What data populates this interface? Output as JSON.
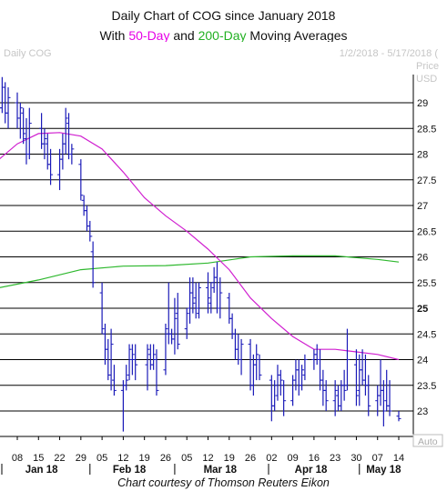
{
  "title_line1": "Daily Chart of COG since January 2018",
  "title_line2": {
    "prefix": "With ",
    "fifty": "50-Day",
    "middle": " and ",
    "two_hundred": "200-Day",
    "suffix": " Moving Averages"
  },
  "credit": "Chart courtesy of Thomson Reuters Eikon",
  "chart_data": {
    "type": "ohlc",
    "instrument_label": "Daily COG",
    "date_range_label": "1/2/2018 - 5/17/2018 (",
    "axis_unit_top": "Price",
    "axis_unit_bottom": "USD",
    "auto_label": "Auto",
    "ylim": [
      22.6,
      29.55
    ],
    "y_ticks": [
      {
        "value": 29,
        "label": "29"
      },
      {
        "value": 28.5,
        "label": "28.5"
      },
      {
        "value": 28,
        "label": "28"
      },
      {
        "value": 27.5,
        "label": "27.5"
      },
      {
        "value": 27,
        "label": "27"
      },
      {
        "value": 26.5,
        "label": "26.5"
      },
      {
        "value": 26,
        "label": "26"
      },
      {
        "value": 25.5,
        "label": "25.5"
      },
      {
        "value": 25,
        "label": "25"
      },
      {
        "value": 24.5,
        "label": "24.5"
      },
      {
        "value": 24,
        "label": "24"
      },
      {
        "value": 23.5,
        "label": "23.5"
      },
      {
        "value": 23,
        "label": "23"
      }
    ],
    "highlight_tick": 25,
    "x_day_labels": [
      "08",
      "15",
      "22",
      "29",
      "05",
      "12",
      "19",
      "26",
      "05",
      "12",
      "19",
      "26",
      "02",
      "09",
      "16",
      "23",
      "30",
      "07",
      "14"
    ],
    "x_month_labels": [
      "Jan 18",
      "Feb 18",
      "Mar 18",
      "Apr 18",
      "May 18"
    ],
    "colors": {
      "bars": "#1a1ab8",
      "sma50": "#d020d0",
      "sma200": "#2eb82e",
      "grid": "#000000"
    },
    "ohlc": [
      {
        "date": "2018-01-02",
        "o": 28.3,
        "h": 29.1,
        "l": 28.1,
        "c": 28.9
      },
      {
        "date": "2018-01-03",
        "o": 28.9,
        "h": 29.5,
        "l": 28.8,
        "c": 29.3
      },
      {
        "date": "2018-01-04",
        "o": 29.3,
        "h": 29.4,
        "l": 28.6,
        "c": 28.8
      },
      {
        "date": "2018-01-05",
        "o": 28.8,
        "h": 29.3,
        "l": 28.5,
        "c": 29.1
      },
      {
        "date": "2018-01-08",
        "o": 29.0,
        "h": 29.2,
        "l": 28.5,
        "c": 28.7
      },
      {
        "date": "2018-01-09",
        "o": 28.7,
        "h": 29.0,
        "l": 28.3,
        "c": 28.9
      },
      {
        "date": "2018-01-10",
        "o": 28.8,
        "h": 28.9,
        "l": 28.2,
        "c": 28.4
      },
      {
        "date": "2018-01-11",
        "o": 28.3,
        "h": 28.7,
        "l": 27.8,
        "c": 28.0
      },
      {
        "date": "2018-01-12",
        "o": 28.0,
        "h": 28.9,
        "l": 27.9,
        "c": 28.6
      },
      {
        "date": "2018-01-16",
        "o": 28.5,
        "h": 28.8,
        "l": 28.1,
        "c": 28.2
      },
      {
        "date": "2018-01-17",
        "o": 28.2,
        "h": 28.5,
        "l": 27.9,
        "c": 28.3
      },
      {
        "date": "2018-01-18",
        "o": 28.2,
        "h": 28.4,
        "l": 27.7,
        "c": 27.8
      },
      {
        "date": "2018-01-19",
        "o": 27.8,
        "h": 28.1,
        "l": 27.4,
        "c": 27.6
      },
      {
        "date": "2018-01-22",
        "o": 27.6,
        "h": 28.1,
        "l": 27.3,
        "c": 27.9
      },
      {
        "date": "2018-01-23",
        "o": 27.9,
        "h": 28.4,
        "l": 27.7,
        "c": 28.2
      },
      {
        "date": "2018-01-24",
        "o": 28.2,
        "h": 28.9,
        "l": 28.0,
        "c": 28.7
      },
      {
        "date": "2018-01-25",
        "o": 28.6,
        "h": 28.8,
        "l": 27.9,
        "c": 28.0
      },
      {
        "date": "2018-01-26",
        "o": 28.0,
        "h": 28.2,
        "l": 27.8,
        "c": 28.1
      },
      {
        "date": "2018-01-29",
        "o": 27.8,
        "h": 27.9,
        "l": 27.1,
        "c": 27.2
      },
      {
        "date": "2018-01-30",
        "o": 27.1,
        "h": 27.2,
        "l": 26.8,
        "c": 26.9
      },
      {
        "date": "2018-01-31",
        "o": 26.9,
        "h": 27.0,
        "l": 26.5,
        "c": 26.6
      },
      {
        "date": "2018-02-01",
        "o": 26.6,
        "h": 26.7,
        "l": 26.3,
        "c": 26.4
      },
      {
        "date": "2018-02-02",
        "o": 26.1,
        "h": 26.3,
        "l": 25.4,
        "c": 25.5
      },
      {
        "date": "2018-02-05",
        "o": 25.3,
        "h": 25.5,
        "l": 24.5,
        "c": 24.6
      },
      {
        "date": "2018-02-06",
        "o": 24.5,
        "h": 24.7,
        "l": 23.9,
        "c": 24.2
      },
      {
        "date": "2018-02-07",
        "o": 24.2,
        "h": 24.4,
        "l": 23.6,
        "c": 23.7
      },
      {
        "date": "2018-02-08",
        "o": 23.7,
        "h": 24.6,
        "l": 23.4,
        "c": 24.3
      },
      {
        "date": "2018-02-09",
        "o": 23.6,
        "h": 23.9,
        "l": 23.3,
        "c": 23.4
      },
      {
        "date": "2018-02-12",
        "o": 23.4,
        "h": 23.6,
        "l": 22.6,
        "c": 23.5
      },
      {
        "date": "2018-02-13",
        "o": 23.5,
        "h": 23.9,
        "l": 23.4,
        "c": 23.6
      },
      {
        "date": "2018-02-14",
        "o": 23.7,
        "h": 24.3,
        "l": 23.6,
        "c": 24.2
      },
      {
        "date": "2018-02-15",
        "o": 24.0,
        "h": 24.3,
        "l": 23.7,
        "c": 24.1
      },
      {
        "date": "2018-02-16",
        "o": 24.0,
        "h": 24.3,
        "l": 23.6,
        "c": 23.9
      },
      {
        "date": "2018-02-20",
        "o": 23.9,
        "h": 24.3,
        "l": 23.4,
        "c": 24.2
      },
      {
        "date": "2018-02-21",
        "o": 24.1,
        "h": 24.3,
        "l": 23.8,
        "c": 23.9
      },
      {
        "date": "2018-02-22",
        "o": 23.9,
        "h": 24.3,
        "l": 23.8,
        "c": 24.1
      },
      {
        "date": "2018-02-23",
        "o": 24.0,
        "h": 24.2,
        "l": 23.3,
        "c": 23.4
      },
      {
        "date": "2018-02-26",
        "o": 23.8,
        "h": 24.7,
        "l": 23.7,
        "c": 24.6
      },
      {
        "date": "2018-02-27",
        "o": 24.5,
        "h": 25.5,
        "l": 24.3,
        "c": 24.5
      },
      {
        "date": "2018-02-28",
        "o": 24.5,
        "h": 24.6,
        "l": 24.3,
        "c": 24.4
      },
      {
        "date": "2018-03-01",
        "o": 24.4,
        "h": 25.2,
        "l": 24.1,
        "c": 24.8
      },
      {
        "date": "2018-03-02",
        "o": 24.9,
        "h": 25.3,
        "l": 24.2,
        "c": 24.3
      },
      {
        "date": "2018-03-05",
        "o": 24.6,
        "h": 25.0,
        "l": 24.4,
        "c": 24.9
      },
      {
        "date": "2018-03-06",
        "o": 25.0,
        "h": 25.6,
        "l": 24.7,
        "c": 25.3
      },
      {
        "date": "2018-03-07",
        "o": 25.3,
        "h": 25.6,
        "l": 24.9,
        "c": 25.1
      },
      {
        "date": "2018-03-08",
        "o": 25.2,
        "h": 25.5,
        "l": 24.8,
        "c": 25.0
      },
      {
        "date": "2018-03-09",
        "o": 24.9,
        "h": 25.5,
        "l": 24.8,
        "c": 25.4
      },
      {
        "date": "2018-03-12",
        "o": 25.4,
        "h": 25.7,
        "l": 24.9,
        "c": 25.2
      },
      {
        "date": "2018-03-13",
        "o": 25.1,
        "h": 25.5,
        "l": 24.9,
        "c": 25.5
      },
      {
        "date": "2018-03-14",
        "o": 25.4,
        "h": 25.8,
        "l": 25.3,
        "c": 25.6
      },
      {
        "date": "2018-03-15",
        "o": 25.6,
        "h": 25.9,
        "l": 24.9,
        "c": 25.0
      },
      {
        "date": "2018-03-16",
        "o": 25.0,
        "h": 25.6,
        "l": 24.8,
        "c": 25.3
      },
      {
        "date": "2018-03-19",
        "o": 25.2,
        "h": 25.3,
        "l": 24.7,
        "c": 24.8
      },
      {
        "date": "2018-03-20",
        "o": 24.8,
        "h": 24.9,
        "l": 24.4,
        "c": 24.5
      },
      {
        "date": "2018-03-21",
        "o": 24.5,
        "h": 24.6,
        "l": 24.0,
        "c": 24.2
      },
      {
        "date": "2018-03-22",
        "o": 24.2,
        "h": 24.5,
        "l": 23.9,
        "c": 24.0
      },
      {
        "date": "2018-03-23",
        "o": 24.0,
        "h": 24.4,
        "l": 23.7,
        "c": 24.3
      },
      {
        "date": "2018-03-26",
        "o": 24.3,
        "h": 24.4,
        "l": 23.4,
        "c": 23.5
      },
      {
        "date": "2018-03-27",
        "o": 23.5,
        "h": 24.1,
        "l": 23.3,
        "c": 23.9
      },
      {
        "date": "2018-03-28",
        "o": 23.9,
        "h": 24.3,
        "l": 23.6,
        "c": 24.1
      },
      {
        "date": "2018-03-29",
        "o": 24.0,
        "h": 24.1,
        "l": 23.6,
        "c": 23.7
      },
      {
        "date": "2018-04-02",
        "o": 23.6,
        "h": 23.7,
        "l": 22.8,
        "c": 23.1
      },
      {
        "date": "2018-04-03",
        "o": 23.1,
        "h": 23.6,
        "l": 23.0,
        "c": 23.5
      },
      {
        "date": "2018-04-04",
        "o": 23.3,
        "h": 23.9,
        "l": 23.2,
        "c": 23.7
      },
      {
        "date": "2018-04-05",
        "o": 23.7,
        "h": 23.8,
        "l": 23.3,
        "c": 23.6
      },
      {
        "date": "2018-04-06",
        "o": 23.5,
        "h": 23.6,
        "l": 22.9,
        "c": 23.2
      },
      {
        "date": "2018-04-09",
        "o": 23.2,
        "h": 23.7,
        "l": 23.1,
        "c": 23.6
      },
      {
        "date": "2018-04-10",
        "o": 23.6,
        "h": 24.0,
        "l": 23.4,
        "c": 23.8
      },
      {
        "date": "2018-04-11",
        "o": 23.8,
        "h": 24.0,
        "l": 23.3,
        "c": 23.5
      },
      {
        "date": "2018-04-12",
        "o": 23.5,
        "h": 23.9,
        "l": 23.4,
        "c": 23.8
      },
      {
        "date": "2018-04-13",
        "o": 23.7,
        "h": 24.1,
        "l": 23.6,
        "c": 24.0
      },
      {
        "date": "2018-04-16",
        "o": 24.0,
        "h": 24.2,
        "l": 23.8,
        "c": 24.1
      },
      {
        "date": "2018-04-17",
        "o": 24.1,
        "h": 24.3,
        "l": 23.9,
        "c": 24.0
      },
      {
        "date": "2018-04-18",
        "o": 24.0,
        "h": 24.2,
        "l": 23.4,
        "c": 23.6
      },
      {
        "date": "2018-04-19",
        "o": 23.6,
        "h": 23.8,
        "l": 23.1,
        "c": 23.4
      },
      {
        "date": "2018-04-20",
        "o": 23.4,
        "h": 23.6,
        "l": 23.0,
        "c": 23.2
      },
      {
        "date": "2018-04-23",
        "o": 23.2,
        "h": 23.6,
        "l": 22.9,
        "c": 23.4
      },
      {
        "date": "2018-04-24",
        "o": 23.3,
        "h": 23.5,
        "l": 23.0,
        "c": 23.1
      },
      {
        "date": "2018-04-25",
        "o": 23.1,
        "h": 23.6,
        "l": 23.0,
        "c": 23.5
      },
      {
        "date": "2018-04-26",
        "o": 23.5,
        "h": 23.8,
        "l": 23.2,
        "c": 23.4
      },
      {
        "date": "2018-04-27",
        "o": 23.5,
        "h": 24.6,
        "l": 23.4,
        "c": 24.0
      },
      {
        "date": "2018-04-30",
        "o": 23.9,
        "h": 24.2,
        "l": 23.1,
        "c": 23.3
      },
      {
        "date": "2018-05-01",
        "o": 23.4,
        "h": 24.1,
        "l": 23.1,
        "c": 23.8
      },
      {
        "date": "2018-05-02",
        "o": 23.8,
        "h": 24.2,
        "l": 23.5,
        "c": 23.6
      },
      {
        "date": "2018-05-03",
        "o": 23.6,
        "h": 24.1,
        "l": 23.3,
        "c": 23.5
      },
      {
        "date": "2018-05-04",
        "o": 23.5,
        "h": 23.7,
        "l": 22.9,
        "c": 23.1
      },
      {
        "date": "2018-05-07",
        "o": 23.2,
        "h": 23.5,
        "l": 22.9,
        "c": 23.3
      },
      {
        "date": "2018-05-08",
        "o": 23.3,
        "h": 24.0,
        "l": 23.1,
        "c": 23.4
      },
      {
        "date": "2018-05-09",
        "o": 23.4,
        "h": 23.6,
        "l": 22.7,
        "c": 23.0
      },
      {
        "date": "2018-05-10",
        "o": 23.2,
        "h": 23.8,
        "l": 23.0,
        "c": 23.1
      },
      {
        "date": "2018-05-11",
        "o": 23.1,
        "h": 23.6,
        "l": 22.9,
        "c": 23.0
      },
      {
        "date": "2018-05-14",
        "o": 22.9,
        "h": 23.0,
        "l": 22.8,
        "c": 22.85
      }
    ],
    "sma50": [
      {
        "date": "2018-01-02",
        "v": 27.9
      },
      {
        "date": "2018-01-08",
        "v": 28.2
      },
      {
        "date": "2018-01-15",
        "v": 28.4
      },
      {
        "date": "2018-01-22",
        "v": 28.42
      },
      {
        "date": "2018-01-29",
        "v": 28.35
      },
      {
        "date": "2018-02-05",
        "v": 28.1
      },
      {
        "date": "2018-02-12",
        "v": 27.65
      },
      {
        "date": "2018-02-19",
        "v": 27.15
      },
      {
        "date": "2018-02-26",
        "v": 26.8
      },
      {
        "date": "2018-03-05",
        "v": 26.5
      },
      {
        "date": "2018-03-12",
        "v": 26.15
      },
      {
        "date": "2018-03-19",
        "v": 25.75
      },
      {
        "date": "2018-03-26",
        "v": 25.2
      },
      {
        "date": "2018-04-02",
        "v": 24.8
      },
      {
        "date": "2018-04-09",
        "v": 24.45
      },
      {
        "date": "2018-04-16",
        "v": 24.2
      },
      {
        "date": "2018-04-23",
        "v": 24.2
      },
      {
        "date": "2018-04-30",
        "v": 24.15
      },
      {
        "date": "2018-05-07",
        "v": 24.1
      },
      {
        "date": "2018-05-14",
        "v": 24.0
      }
    ],
    "sma200": [
      {
        "date": "2018-01-02",
        "v": 25.4
      },
      {
        "date": "2018-01-15",
        "v": 25.55
      },
      {
        "date": "2018-01-29",
        "v": 25.75
      },
      {
        "date": "2018-02-12",
        "v": 25.82
      },
      {
        "date": "2018-02-26",
        "v": 25.83
      },
      {
        "date": "2018-03-12",
        "v": 25.88
      },
      {
        "date": "2018-03-26",
        "v": 26.0
      },
      {
        "date": "2018-04-09",
        "v": 26.02
      },
      {
        "date": "2018-04-23",
        "v": 26.02
      },
      {
        "date": "2018-05-07",
        "v": 25.95
      },
      {
        "date": "2018-05-14",
        "v": 25.9
      }
    ]
  }
}
